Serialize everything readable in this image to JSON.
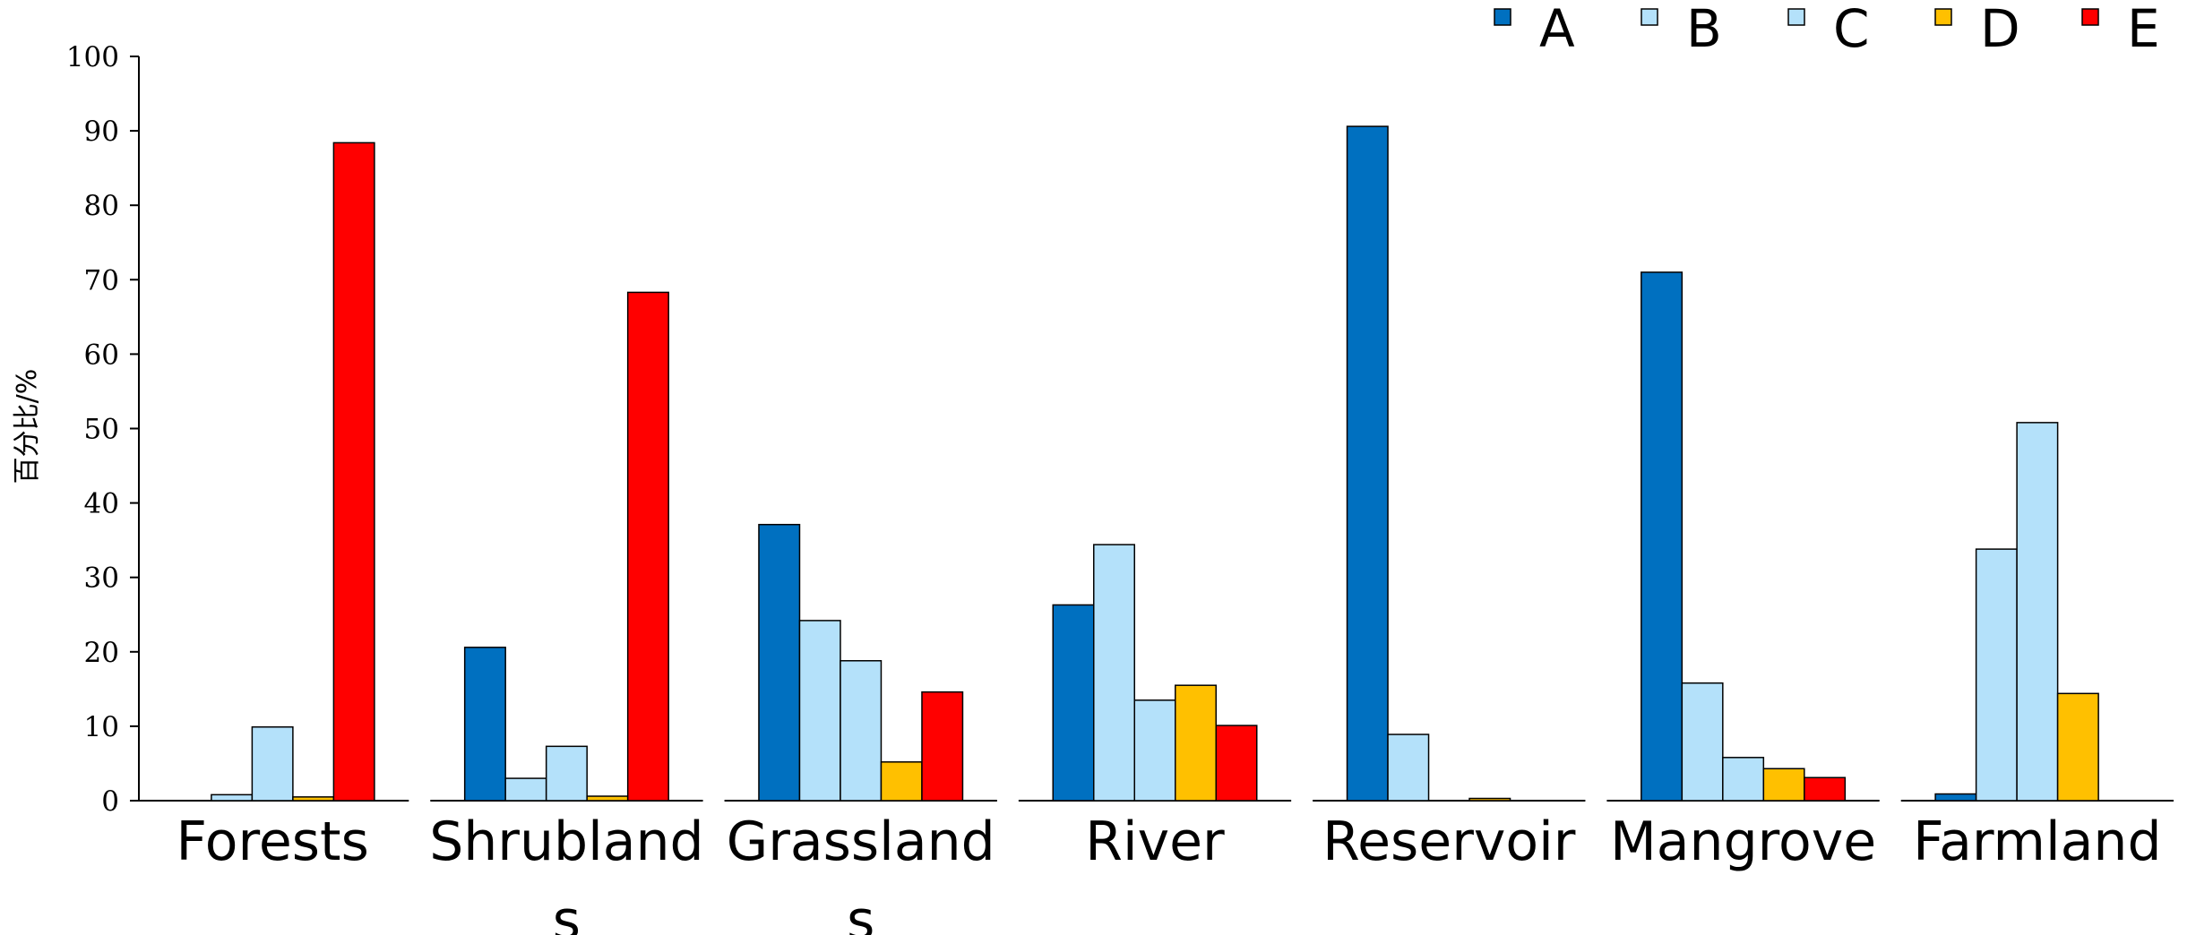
{
  "chart_data": {
    "type": "bar",
    "title": "",
    "xlabel": "",
    "ylabel": "百分比/%",
    "ylim": [
      0,
      100
    ],
    "yticks": [
      0,
      10,
      20,
      30,
      40,
      50,
      60,
      70,
      80,
      90,
      100
    ],
    "grid": false,
    "legend_position": "top-right",
    "categories": [
      [
        "Forests"
      ],
      [
        "Shrubland",
        "s"
      ],
      [
        "Grassland",
        "s"
      ],
      [
        "River"
      ],
      [
        "Reservoir"
      ],
      [
        "Mangrove"
      ],
      [
        "Farmland"
      ]
    ],
    "series": [
      {
        "name": "A",
        "color": "#0070C0",
        "values": [
          0,
          20.6,
          37.1,
          26.3,
          90.6,
          71.0,
          0.9
        ]
      },
      {
        "name": "B",
        "color": "#B4E1FA",
        "values": [
          0.8,
          3.0,
          24.2,
          34.4,
          8.9,
          15.8,
          33.8
        ]
      },
      {
        "name": "C",
        "color": "#B4E1FA",
        "values": [
          9.9,
          7.3,
          18.8,
          13.5,
          0,
          5.8,
          50.8
        ]
      },
      {
        "name": "D",
        "color": "#FFC000",
        "values": [
          0.5,
          0.6,
          5.2,
          15.5,
          0.3,
          4.3,
          14.4
        ]
      },
      {
        "name": "E",
        "color": "#FF0000",
        "values": [
          88.4,
          68.3,
          14.6,
          10.1,
          0,
          3.1,
          0
        ]
      }
    ]
  }
}
